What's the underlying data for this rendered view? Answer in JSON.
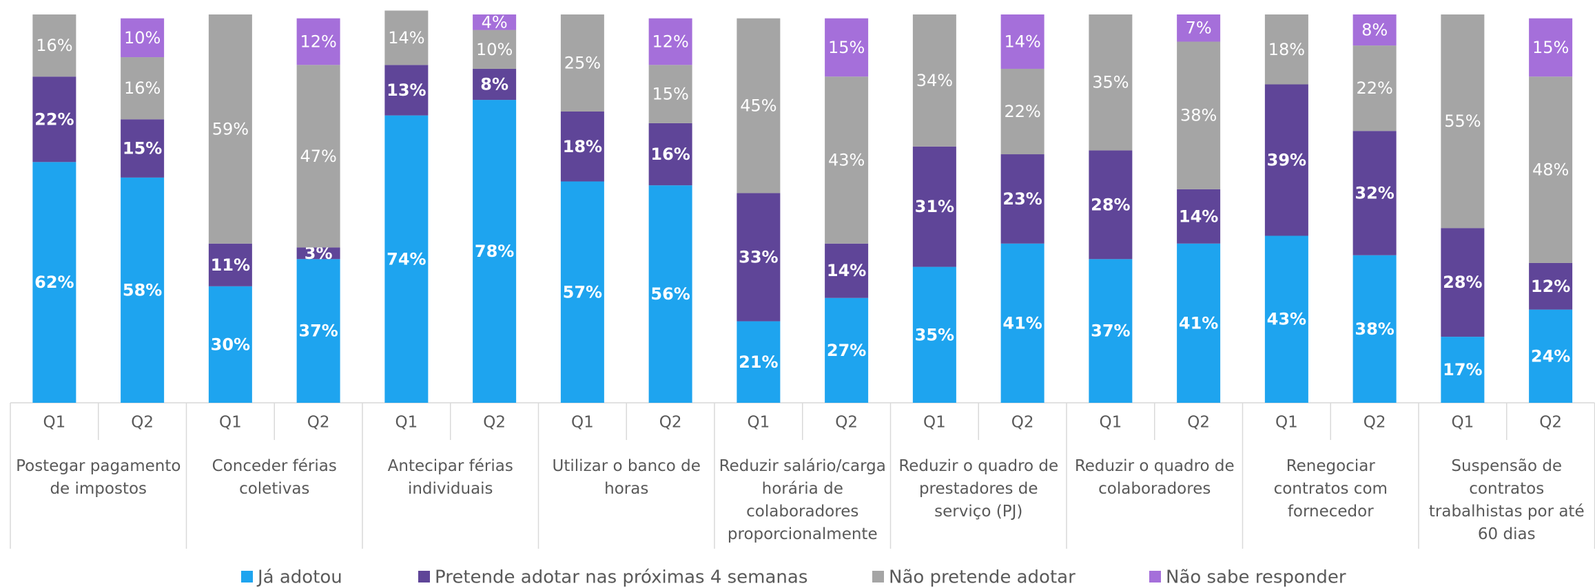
{
  "chart_data": {
    "type": "stacked_bar",
    "groups": [
      "Postegar pagamento de impostos",
      "Conceder férias coletivas",
      "Antecipar férias individuais",
      "Utilizar o banco de horas",
      "Reduzir salário/carga horária de colaboradores proporcionalmente",
      "Reduzir o quadro de prestadores de serviço (PJ)",
      "Reduzir o quadro de colaboradores",
      "Renegociar contratos com fornecedor",
      "Suspensão de contratos trabalhistas por até 60 dias"
    ],
    "categories": [
      "Q1",
      "Q2",
      "Q1",
      "Q2",
      "Q1",
      "Q2",
      "Q1",
      "Q2",
      "Q1",
      "Q2",
      "Q1",
      "Q2",
      "Q1",
      "Q2",
      "Q1",
      "Q2",
      "Q1",
      "Q2"
    ],
    "ylim": [
      0,
      100
    ],
    "series": [
      {
        "name": "Já adotou",
        "color": "#1ea4ef",
        "values": [
          62,
          58,
          30,
          37,
          74,
          78,
          57,
          56,
          21,
          27,
          35,
          41,
          37,
          41,
          43,
          38,
          17,
          24
        ],
        "value_labels": [
          "62%",
          "58%",
          "30%",
          "37%",
          "74%",
          "78%",
          "57%",
          "56%",
          "21%",
          "27%",
          "35%",
          "41%",
          "37%",
          "41%",
          "43%",
          "38%",
          "17%",
          "24%"
        ]
      },
      {
        "name": "Pretende adotar nas próximas 4 semanas",
        "color": "#5f4598",
        "values": [
          22,
          15,
          11,
          3,
          13,
          8,
          18,
          16,
          33,
          14,
          31,
          23,
          28,
          14,
          39,
          32,
          28,
          12
        ],
        "value_labels": [
          "22%",
          "15%",
          "11%",
          "3%",
          "13%",
          "8%",
          "18%",
          "16%",
          "33%",
          "14%",
          "31%",
          "23%",
          "28%",
          "14%",
          "39%",
          "32%",
          "28%",
          "12%"
        ]
      },
      {
        "name": "Não pretende adotar",
        "color": "#a5a5a5",
        "values": [
          16,
          16,
          59,
          47,
          14,
          10,
          25,
          15,
          45,
          43,
          34,
          22,
          35,
          38,
          18,
          22,
          55,
          48
        ],
        "value_labels": [
          "16%",
          "16%",
          "59%",
          "47%",
          "14%",
          "10%",
          "25%",
          "15%",
          "45%",
          "43%",
          "34%",
          "22%",
          "35%",
          "38%",
          "18%",
          "22%",
          "55%",
          "48%"
        ]
      },
      {
        "name": "Não sabe responder",
        "color": "#a56fda",
        "values": [
          null,
          10,
          null,
          12,
          null,
          4,
          null,
          12,
          null,
          15,
          null,
          14,
          null,
          7,
          null,
          8,
          null,
          15
        ],
        "value_labels": [
          null,
          "10%",
          null,
          "12%",
          null,
          "4%",
          null,
          "12%",
          null,
          "15%",
          null,
          "14%",
          null,
          "7%",
          null,
          "8%",
          null,
          "15%"
        ]
      }
    ]
  }
}
